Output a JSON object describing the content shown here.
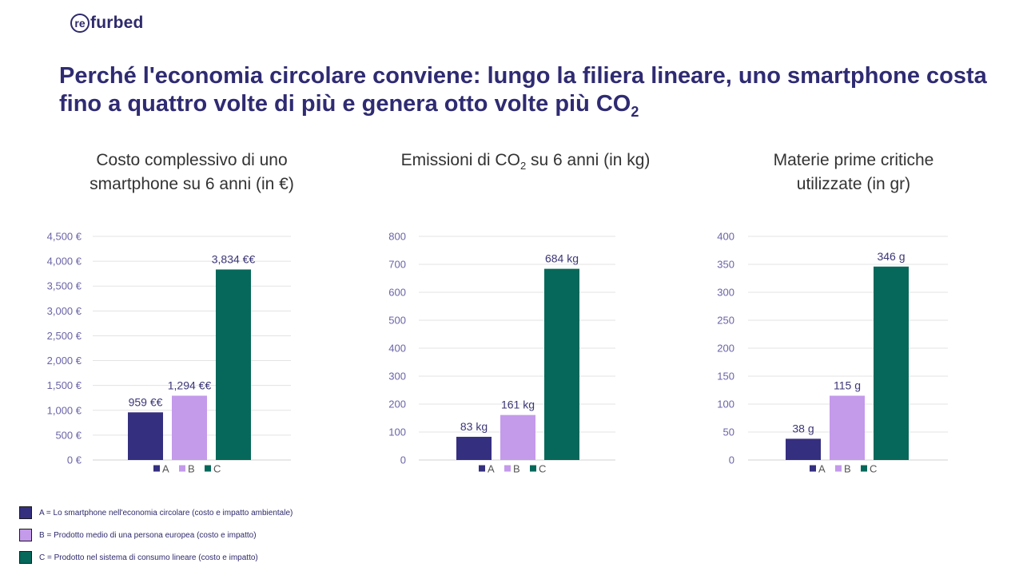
{
  "logo": {
    "circle_text": "re",
    "rest_text": "furbed"
  },
  "headline": {
    "text": "Perché l'economia circolare conviene: lungo la filiera lineare, uno smartphone costa fino a quattro volte di più e genera otto volte più CO",
    "sub": "2"
  },
  "colors": {
    "A": "#352f80",
    "B": "#c49aeb",
    "C": "#06685a"
  },
  "chart_data": [
    {
      "type": "bar",
      "title_pre": "Costo complessivo di uno smartphone su 6 anni (in €)",
      "title_sub": "",
      "title_post": "",
      "categories": [
        "A",
        "B",
        "C"
      ],
      "values": [
        959,
        1294,
        3834
      ],
      "data_labels": [
        "959 €€",
        "1,294 €€",
        "3,834 €€"
      ],
      "yticks": [
        "0 €",
        "500 €",
        "1,000 €",
        "1,500 €",
        "2,000 €",
        "2,500 €",
        "3,000 €",
        "3,500 €",
        "4,000 €",
        "4,500 €"
      ],
      "ylim": [
        0,
        4500
      ],
      "grid": true,
      "legend": "bottom"
    },
    {
      "type": "bar",
      "title_pre": "Emissioni di CO",
      "title_sub": "2",
      "title_post": " su 6 anni (in kg)",
      "categories": [
        "A",
        "B",
        "C"
      ],
      "values": [
        83,
        161,
        684
      ],
      "data_labels": [
        "83 kg",
        "161 kg",
        "684 kg"
      ],
      "yticks": [
        "0",
        "100",
        "200",
        "300",
        "400",
        "500",
        "600",
        "700",
        "800"
      ],
      "ylim": [
        0,
        800
      ],
      "grid": true,
      "legend": "bottom"
    },
    {
      "type": "bar",
      "title_pre": "Materie prime critiche utilizzate (in gr)",
      "title_sub": "",
      "title_post": "",
      "categories": [
        "A",
        "B",
        "C"
      ],
      "values": [
        38,
        115,
        346
      ],
      "data_labels": [
        "38 g",
        "115 g",
        "346 g"
      ],
      "yticks": [
        "0",
        "50",
        "100",
        "150",
        "200",
        "250",
        "300",
        "350",
        "400"
      ],
      "ylim": [
        0,
        400
      ],
      "grid": true,
      "legend": "bottom"
    }
  ],
  "footer_legend": [
    {
      "key": "A",
      "text": "A = Lo smartphone nell'economia circolare (costo e impatto ambientale)"
    },
    {
      "key": "B",
      "text": "B = Prodotto medio di una persona europea (costo e impatto)"
    },
    {
      "key": "C",
      "text": "C = Prodotto nel sistema di consumo lineare (costo e impatto)"
    }
  ]
}
